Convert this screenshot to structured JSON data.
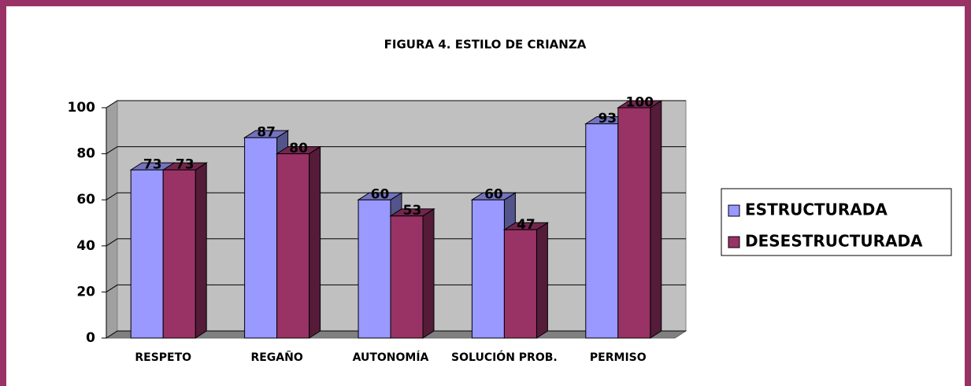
{
  "chart_data": {
    "type": "bar3d",
    "title": "FIGURA 4. ESTILO DE CRIANZA",
    "categories": [
      "RESPETO",
      "REGAÑO",
      "AUTONOMÍA",
      "SOLUCIÓN PROB.",
      "PERMISO"
    ],
    "series": [
      {
        "name": "ESTRUCTURADA",
        "color": "#9999ff",
        "values": [
          73,
          87,
          60,
          60,
          93
        ]
      },
      {
        "name": "DESESTRUCTURADA",
        "color": "#993366",
        "values": [
          73,
          80,
          53,
          47,
          100
        ]
      }
    ],
    "ylim": [
      0,
      100
    ],
    "yticks": [
      0,
      20,
      40,
      60,
      80,
      100
    ],
    "grid": true,
    "legend": "right"
  }
}
